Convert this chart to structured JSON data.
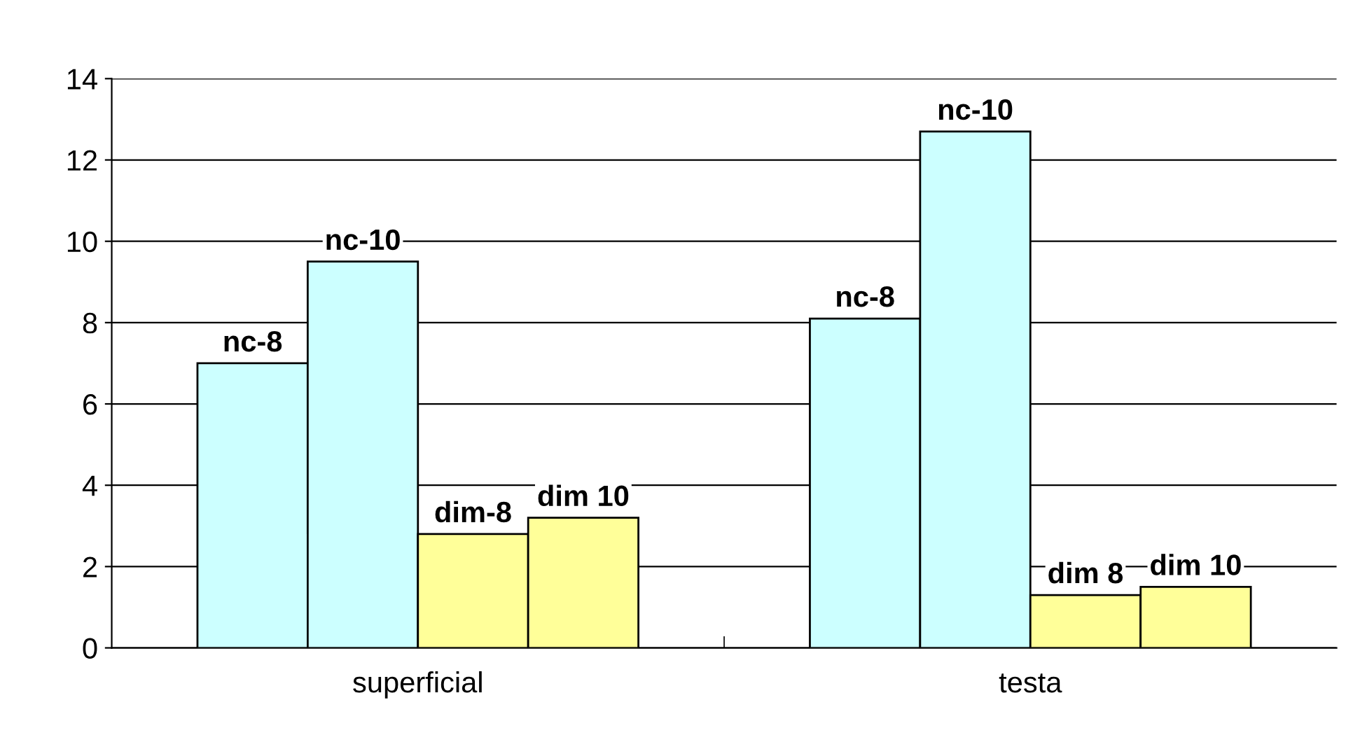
{
  "chart_data": {
    "type": "bar",
    "categories": [
      "superficial",
      "testa"
    ],
    "series": [
      {
        "color": "#ccffff",
        "values": [
          7.0,
          8.1
        ],
        "value_labels": [
          "nc-8",
          "nc-8"
        ]
      },
      {
        "color": "#ccffff",
        "values": [
          9.5,
          12.7
        ],
        "value_labels": [
          "nc-10",
          "nc-10"
        ]
      },
      {
        "color": "#ffff99",
        "values": [
          2.8,
          1.3
        ],
        "value_labels": [
          "dim-8",
          "dim 8"
        ]
      },
      {
        "color": "#ffff99",
        "values": [
          3.2,
          1.5
        ],
        "value_labels": [
          "dim 10",
          "dim 10"
        ]
      }
    ],
    "ylim": [
      0,
      14
    ],
    "yticks": [
      0,
      2,
      4,
      6,
      8,
      10,
      12,
      14
    ],
    "grid": "y",
    "legend": false
  }
}
